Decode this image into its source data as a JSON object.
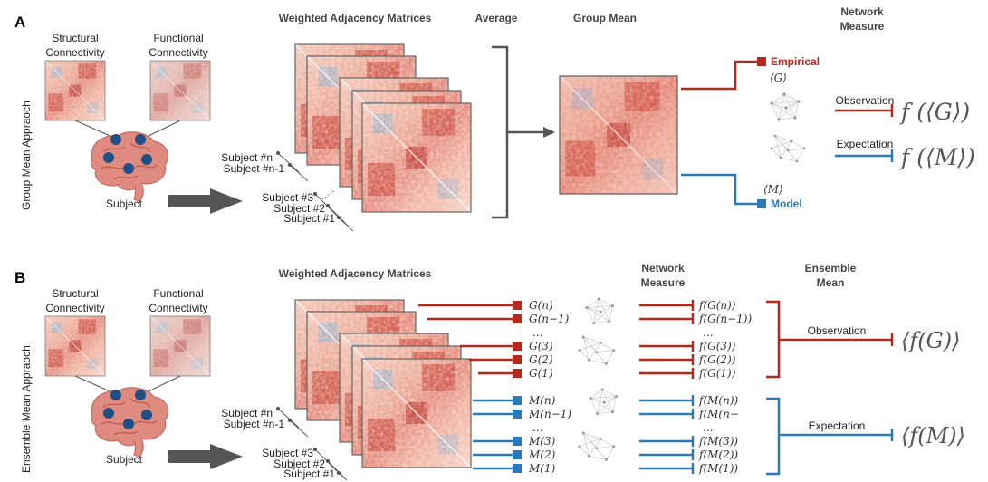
{
  "colors": {
    "empirical": "#b5281c",
    "model": "#2a7ab9",
    "arrow": "#555555",
    "brain": "#e08b80",
    "brain_node": "#1e4f86"
  },
  "panel_a": {
    "label": "A",
    "side_label": "Group Mean Appraoch",
    "structural": [
      "Structural",
      "Connectivity"
    ],
    "functional": [
      "Functional",
      "Connectivity"
    ],
    "subject": "Subject",
    "header_matrices": "Weighted Adjacency Matrices",
    "header_average": "Average",
    "header_group_mean": "Group Mean",
    "header_network_measure": [
      "Network",
      "Measure"
    ],
    "subjects": [
      "Subject #n",
      "Subject #n-1",
      "Subject #3",
      "Subject #2",
      "Subject #1"
    ],
    "empirical": "Empirical",
    "model": "Model",
    "g_symbol": "⟨G⟩",
    "m_symbol": "⟨M⟩",
    "observation": "Observation",
    "expectation": "Expectation",
    "f_g": "f (⟨G⟩)",
    "f_m": "f (⟨M⟩)"
  },
  "panel_b": {
    "label": "B",
    "side_label": "Ensemble Mean Appraoch",
    "structural": [
      "Structural",
      "Connectivity"
    ],
    "functional": [
      "Functional",
      "Connectivity"
    ],
    "subject": "Subject",
    "header_matrices": "Weighted Adjacency Matrices",
    "header_network_measure": [
      "Network",
      "Measure"
    ],
    "header_ensemble_mean": [
      "Ensemble",
      "Mean"
    ],
    "subjects": [
      "Subject #n",
      "Subject #n-1",
      "Subject #3",
      "Subject #2",
      "Subject #1"
    ],
    "g_terms": [
      "G(n)",
      "G(n−1)",
      "...",
      "G(3)",
      "G(2)",
      "G(1)"
    ],
    "m_terms": [
      "M(n)",
      "M(n−1)",
      "...",
      "M(3)",
      "M(2)",
      "M(1)"
    ],
    "fg_terms": [
      "f(G(n))",
      "f(G(n−1))",
      "...",
      "f(G(3))",
      "f(G(2))",
      "f(G(1))"
    ],
    "fm_terms": [
      "f(M(n))",
      "f(M(n−",
      "...",
      "f(M(3))",
      "f(M(2))",
      "f(M(1))"
    ],
    "observation": "Observation",
    "expectation": "Expectation",
    "mean_fg": "⟨f(G)⟩",
    "mean_fm": "⟨f(M)⟩"
  }
}
